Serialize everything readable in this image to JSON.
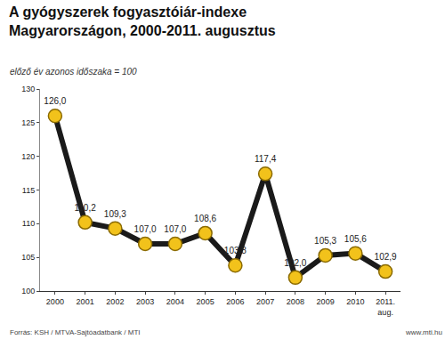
{
  "chart_data": {
    "type": "line",
    "title": "A gyógyszerek fogyasztóiár-indexe\nMagyarországon, 2000-2011. augusztus",
    "subtitle": "előző év azonos időszaka = 100",
    "categories": [
      "2000",
      "2001",
      "2002",
      "2003",
      "2004",
      "2005",
      "2006",
      "2007",
      "2008",
      "2009",
      "2010",
      "2011. aug."
    ],
    "values": [
      126.0,
      110.2,
      109.3,
      107.0,
      107.0,
      108.6,
      103.8,
      117.4,
      102.0,
      105.3,
      105.6,
      102.9
    ],
    "value_labels": [
      "126,0",
      "110,2",
      "109,3",
      "107,0",
      "107,0",
      "108,6",
      "103,8",
      "117,4",
      "102,0",
      "105,3",
      "105,6",
      "102,9"
    ],
    "color": "#1a1a1a",
    "marker": "circle",
    "ylim": [
      100,
      130
    ],
    "yticks": [
      100,
      105,
      110,
      115,
      120,
      125,
      130
    ],
    "grid": false,
    "data_labels": true,
    "annotations": [
      "Forrás: KSH / MTVA-Sajtóadatbank / MTI",
      "www.mti.hu"
    ]
  }
}
